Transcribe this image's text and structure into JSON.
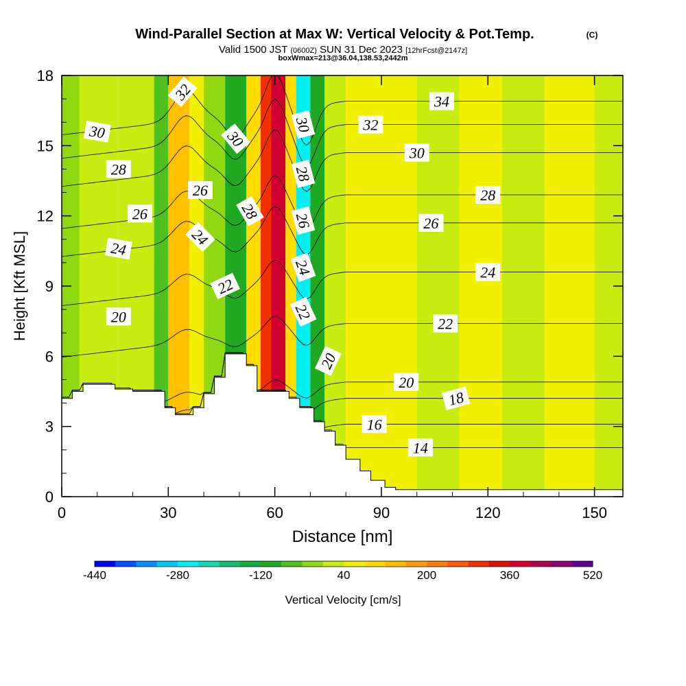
{
  "header": {
    "title": "Wind-Parallel Section at Max W: Vertical Velocity & Pot.Temp.",
    "copyright": "(C)",
    "valid_prefix": "Valid 1500 JST",
    "valid_zulu": "(0600Z)",
    "valid_date": "SUN 31 Dec 2023",
    "forecast_info": "[12hrFcst@2147z]",
    "box_info": "boxWmax=213@36.04,138.53,2442m"
  },
  "chart_data": {
    "type": "heatmap",
    "xlabel": "Distance [nm]",
    "ylabel": "Height [Kft MSL]",
    "xlim": [
      0,
      158
    ],
    "ylim": [
      0,
      18
    ],
    "x_ticks": [
      0,
      30,
      60,
      90,
      120,
      150
    ],
    "y_ticks": [
      0,
      3,
      6,
      9,
      12,
      15,
      18
    ],
    "colorbar": {
      "label": "Vertical Velocity [cm/s]",
      "tick_labels": [
        -440,
        -280,
        -120,
        40,
        200,
        360,
        520
      ],
      "levels": [
        -440,
        -400,
        -360,
        -320,
        -280,
        -240,
        -200,
        -160,
        -120,
        -80,
        -40,
        0,
        40,
        80,
        120,
        160,
        200,
        240,
        280,
        320,
        360,
        400,
        440,
        480,
        520
      ],
      "colors": [
        "#0000ff",
        "#0050ff",
        "#0090ff",
        "#00c8ff",
        "#00f0f0",
        "#10d8b0",
        "#10c070",
        "#10b040",
        "#20a820",
        "#50c020",
        "#90d810",
        "#c8ec10",
        "#f0f000",
        "#ffdc00",
        "#ffc000",
        "#ffa000",
        "#ff8000",
        "#ff5a00",
        "#f03000",
        "#e01000",
        "#d00030",
        "#b00050",
        "#900070",
        "#600090"
      ]
    },
    "velocity_bands": [
      {
        "x0": 0,
        "x1": 5,
        "value": -40
      },
      {
        "x0": 5,
        "x1": 16,
        "value": 0
      },
      {
        "x0": 16,
        "x1": 26,
        "value": 0
      },
      {
        "x0": 26,
        "x1": 30,
        "value": -80
      },
      {
        "x0": 30,
        "x1": 36,
        "value": 120
      },
      {
        "x0": 36,
        "x1": 40,
        "value": 40
      },
      {
        "x0": 40,
        "x1": 46,
        "value": -40
      },
      {
        "x0": 46,
        "x1": 52,
        "value": -120
      },
      {
        "x0": 52,
        "x1": 56,
        "value": 80
      },
      {
        "x0": 56,
        "x1": 59,
        "value": 280
      },
      {
        "x0": 59,
        "x1": 63,
        "value": 360
      },
      {
        "x0": 63,
        "x1": 66,
        "value": 80
      },
      {
        "x0": 66,
        "x1": 70,
        "value": -280
      },
      {
        "x0": 70,
        "x1": 74,
        "value": -120
      },
      {
        "x0": 74,
        "x1": 80,
        "value": 0
      },
      {
        "x0": 80,
        "x1": 100,
        "value": 40
      },
      {
        "x0": 100,
        "x1": 112,
        "value": 0
      },
      {
        "x0": 112,
        "x1": 124,
        "value": 40
      },
      {
        "x0": 124,
        "x1": 136,
        "value": 0
      },
      {
        "x0": 136,
        "x1": 150,
        "value": 40
      },
      {
        "x0": 150,
        "x1": 158,
        "value": 0
      }
    ],
    "terrain": [
      [
        0,
        4.2
      ],
      [
        3,
        4.2
      ],
      [
        3,
        4.5
      ],
      [
        6,
        4.5
      ],
      [
        6,
        4.8
      ],
      [
        15,
        4.8
      ],
      [
        15,
        4.6
      ],
      [
        20,
        4.6
      ],
      [
        20,
        4.5
      ],
      [
        29,
        4.5
      ],
      [
        29,
        3.8
      ],
      [
        32,
        3.8
      ],
      [
        32,
        3.5
      ],
      [
        37,
        3.5
      ],
      [
        37,
        3.8
      ],
      [
        40,
        3.8
      ],
      [
        40,
        4.4
      ],
      [
        43,
        4.4
      ],
      [
        43,
        5.1
      ],
      [
        46,
        5.1
      ],
      [
        46,
        6.1
      ],
      [
        52,
        6.1
      ],
      [
        52,
        5.6
      ],
      [
        55,
        5.6
      ],
      [
        55,
        4.5
      ],
      [
        64,
        4.5
      ],
      [
        64,
        4.2
      ],
      [
        67,
        4.2
      ],
      [
        67,
        3.8
      ],
      [
        71,
        3.8
      ],
      [
        71,
        3.2
      ],
      [
        74,
        3.2
      ],
      [
        74,
        2.8
      ],
      [
        77,
        2.8
      ],
      [
        77,
        2.2
      ],
      [
        80,
        2.2
      ],
      [
        80,
        1.6
      ],
      [
        84,
        1.6
      ],
      [
        84,
        1.1
      ],
      [
        87,
        1.1
      ],
      [
        87,
        0.7
      ],
      [
        91,
        0.7
      ],
      [
        91,
        0.4
      ],
      [
        94,
        0.4
      ],
      [
        94,
        0.3
      ],
      [
        158,
        0.3
      ]
    ],
    "isentropes": [
      {
        "value": 14,
        "label": "14",
        "label_x": 101,
        "label_y": 2.1,
        "label_angle": 0
      },
      {
        "value": 16,
        "label": "16",
        "label_x": 88,
        "label_y": 3.1,
        "label_angle": 0
      },
      {
        "value": 18,
        "label": "18",
        "label_x": 111,
        "label_y": 4.2,
        "label_angle": -15
      },
      {
        "value": 20,
        "label": "20",
        "label_x": 97,
        "label_y": 4.9,
        "label_angle": 0
      },
      {
        "value": 22,
        "label": "22",
        "label_x": 108,
        "label_y": 7.4,
        "label_angle": 0
      },
      {
        "value": 24,
        "label": "24",
        "label_x": 120,
        "label_y": 9.6,
        "label_angle": 0
      },
      {
        "value": 26,
        "label": "26",
        "label_x": 104,
        "label_y": 11.7,
        "label_angle": 0
      },
      {
        "value": 28,
        "label": "28",
        "label_x": 120,
        "label_y": 12.9,
        "label_angle": 0
      },
      {
        "value": 30,
        "label": "30",
        "label_x": 100,
        "label_y": 14.7,
        "label_angle": 0
      },
      {
        "value": 32,
        "label": "32",
        "label_x": 87,
        "label_y": 15.9,
        "label_angle": 0
      },
      {
        "value": 34,
        "label": "34",
        "label_x": 107,
        "label_y": 16.9,
        "label_angle": 0
      }
    ],
    "contour_labels": [
      {
        "label": "30",
        "x": 10,
        "y": 15.6,
        "angle": 10
      },
      {
        "label": "28",
        "x": 16,
        "y": 14.0,
        "angle": 0
      },
      {
        "label": "26",
        "x": 22,
        "y": 12.1,
        "angle": 0
      },
      {
        "label": "24",
        "x": 16,
        "y": 10.6,
        "angle": 10
      },
      {
        "label": "20",
        "x": 16,
        "y": 7.7,
        "angle": 0
      },
      {
        "label": "32",
        "x": 34,
        "y": 17.3,
        "angle": -50
      },
      {
        "label": "26",
        "x": 39,
        "y": 13.1,
        "angle": 0
      },
      {
        "label": "24",
        "x": 39,
        "y": 11.1,
        "angle": 45
      },
      {
        "label": "22",
        "x": 46,
        "y": 9.0,
        "angle": -25
      },
      {
        "label": "30",
        "x": 49,
        "y": 15.3,
        "angle": 50
      },
      {
        "label": "28",
        "x": 53,
        "y": 12.2,
        "angle": 60
      },
      {
        "label": "30",
        "x": 68,
        "y": 15.9,
        "angle": 75
      },
      {
        "label": "28",
        "x": 68,
        "y": 13.8,
        "angle": 75
      },
      {
        "label": "26",
        "x": 68,
        "y": 11.8,
        "angle": 75
      },
      {
        "label": "24",
        "x": 68,
        "y": 9.8,
        "angle": 70
      },
      {
        "label": "22",
        "x": 68,
        "y": 7.9,
        "angle": 65
      },
      {
        "label": "20",
        "x": 75,
        "y": 5.8,
        "angle": -65
      }
    ]
  }
}
